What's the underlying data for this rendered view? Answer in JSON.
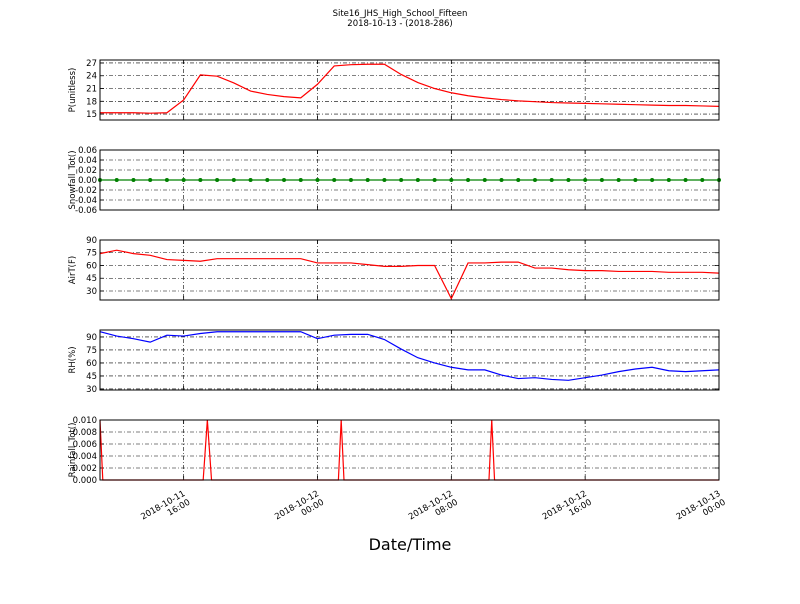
{
  "chart_data": [
    {
      "type": "line",
      "title": "Site16_JHS_High_School_Fifteen",
      "subtitle": "2018-10-13 - (2018-286)",
      "ylabel": "P(unitless)",
      "xlim": [
        "2018-10-11 11:00",
        "2018-10-13 00:00"
      ],
      "x": [
        "2018-10-11 11:00",
        "2018-10-11 12:00",
        "2018-10-11 13:00",
        "2018-10-11 14:00",
        "2018-10-11 15:00",
        "2018-10-11 16:00",
        "2018-10-11 17:00",
        "2018-10-11 18:00",
        "2018-10-11 19:00",
        "2018-10-11 20:00",
        "2018-10-11 21:00",
        "2018-10-11 22:00",
        "2018-10-11 23:00",
        "2018-10-12 00:00",
        "2018-10-12 01:00",
        "2018-10-12 02:00",
        "2018-10-12 03:00",
        "2018-10-12 04:00",
        "2018-10-12 05:00",
        "2018-10-12 06:00",
        "2018-10-12 07:00",
        "2018-10-12 08:00",
        "2018-10-12 09:00",
        "2018-10-12 10:00",
        "2018-10-12 11:00",
        "2018-10-12 12:00",
        "2018-10-12 13:00",
        "2018-10-12 14:00",
        "2018-10-12 15:00",
        "2018-10-12 16:00",
        "2018-10-12 17:00",
        "2018-10-12 18:00",
        "2018-10-12 19:00",
        "2018-10-12 20:00",
        "2018-10-12 21:00",
        "2018-10-12 22:00",
        "2018-10-12 23:00",
        "2018-10-13 00:00"
      ],
      "series": [
        {
          "color": "#ff0000",
          "values": [
            15.3,
            15.3,
            15.3,
            15.2,
            15.3,
            18.3,
            24.2,
            23.9,
            22.3,
            20.4,
            19.6,
            19.1,
            18.8,
            22.0,
            26.3,
            26.6,
            26.7,
            26.7,
            24.3,
            22.4,
            21.0,
            20.0,
            19.3,
            18.8,
            18.4,
            18.1,
            17.9,
            17.7,
            17.6,
            17.5,
            17.4,
            17.3,
            17.2,
            17.1,
            17.0,
            17.0,
            16.9,
            16.8
          ]
        }
      ],
      "ylim": [
        13.6,
        27.7
      ],
      "yticks": [
        15,
        18,
        21,
        24,
        27
      ],
      "grid": true
    },
    {
      "type": "line",
      "ylabel": "Snowfall_Tot()",
      "markers": true,
      "xlim": [
        "2018-10-11 11:00",
        "2018-10-13 00:00"
      ],
      "x": [
        "2018-10-11 11:00",
        "2018-10-11 12:00",
        "2018-10-11 13:00",
        "2018-10-11 14:00",
        "2018-10-11 15:00",
        "2018-10-11 16:00",
        "2018-10-11 17:00",
        "2018-10-11 18:00",
        "2018-10-11 19:00",
        "2018-10-11 20:00",
        "2018-10-11 21:00",
        "2018-10-11 22:00",
        "2018-10-11 23:00",
        "2018-10-12 00:00",
        "2018-10-12 01:00",
        "2018-10-12 02:00",
        "2018-10-12 03:00",
        "2018-10-12 04:00",
        "2018-10-12 05:00",
        "2018-10-12 06:00",
        "2018-10-12 07:00",
        "2018-10-12 08:00",
        "2018-10-12 09:00",
        "2018-10-12 10:00",
        "2018-10-12 11:00",
        "2018-10-12 12:00",
        "2018-10-12 13:00",
        "2018-10-12 14:00",
        "2018-10-12 15:00",
        "2018-10-12 16:00",
        "2018-10-12 17:00",
        "2018-10-12 18:00",
        "2018-10-12 19:00",
        "2018-10-12 20:00",
        "2018-10-12 21:00",
        "2018-10-12 22:00",
        "2018-10-12 23:00",
        "2018-10-13 00:00"
      ],
      "series": [
        {
          "color": "#008000",
          "values": [
            0,
            0,
            0,
            0,
            0,
            0,
            0,
            0,
            0,
            0,
            0,
            0,
            0,
            0,
            0,
            0,
            0,
            0,
            0,
            0,
            0,
            0,
            0,
            0,
            0,
            0,
            0,
            0,
            0,
            0,
            0,
            0,
            0,
            0,
            0,
            0,
            0,
            0
          ]
        }
      ],
      "ylim": [
        -0.06,
        0.06
      ],
      "yticks": [
        -0.06,
        -0.04,
        -0.02,
        {
          "value": 0,
          "label": "0.00"
        },
        0.02,
        0.04,
        0.06
      ],
      "grid": true
    },
    {
      "type": "line",
      "ylabel": "AirT(F)",
      "xlim": [
        "2018-10-11 11:00",
        "2018-10-13 00:00"
      ],
      "x": [
        "2018-10-11 11:00",
        "2018-10-11 12:00",
        "2018-10-11 13:00",
        "2018-10-11 14:00",
        "2018-10-11 15:00",
        "2018-10-11 16:00",
        "2018-10-11 17:00",
        "2018-10-11 18:00",
        "2018-10-11 19:00",
        "2018-10-11 20:00",
        "2018-10-11 21:00",
        "2018-10-11 22:00",
        "2018-10-11 23:00",
        "2018-10-12 00:00",
        "2018-10-12 01:00",
        "2018-10-12 02:00",
        "2018-10-12 03:00",
        "2018-10-12 04:00",
        "2018-10-12 05:00",
        "2018-10-12 06:00",
        "2018-10-12 07:00",
        "2018-10-12 08:00",
        "2018-10-12 09:00",
        "2018-10-12 10:00",
        "2018-10-12 11:00",
        "2018-10-12 12:00",
        "2018-10-12 13:00",
        "2018-10-12 14:00",
        "2018-10-12 15:00",
        "2018-10-12 16:00",
        "2018-10-12 17:00",
        "2018-10-12 18:00",
        "2018-10-12 19:00",
        "2018-10-12 20:00",
        "2018-10-12 21:00",
        "2018-10-12 22:00",
        "2018-10-12 23:00",
        "2018-10-13 00:00"
      ],
      "series": [
        {
          "color": "#ff0000",
          "values": [
            74,
            78,
            74,
            72,
            67,
            66,
            65,
            68,
            68,
            68,
            68,
            68,
            68,
            63,
            63,
            63,
            61,
            59,
            59,
            60,
            60,
            21,
            63,
            63,
            64,
            64,
            57,
            57,
            55,
            54,
            54,
            53,
            53,
            53,
            52,
            52,
            52,
            51
          ]
        }
      ],
      "ylim": [
        19.4,
        90
      ],
      "yticks": [
        30,
        45,
        60,
        75,
        90
      ],
      "grid": true
    },
    {
      "type": "line",
      "ylabel": "RH(%)",
      "xlim": [
        "2018-10-11 11:00",
        "2018-10-13 00:00"
      ],
      "x": [
        "2018-10-11 11:00",
        "2018-10-11 12:00",
        "2018-10-11 13:00",
        "2018-10-11 14:00",
        "2018-10-11 15:00",
        "2018-10-11 16:00",
        "2018-10-11 17:00",
        "2018-10-11 18:00",
        "2018-10-11 19:00",
        "2018-10-11 20:00",
        "2018-10-11 21:00",
        "2018-10-11 22:00",
        "2018-10-11 23:00",
        "2018-10-12 00:00",
        "2018-10-12 01:00",
        "2018-10-12 02:00",
        "2018-10-12 03:00",
        "2018-10-12 04:00",
        "2018-10-12 05:00",
        "2018-10-12 06:00",
        "2018-10-12 07:00",
        "2018-10-12 08:00",
        "2018-10-12 09:00",
        "2018-10-12 10:00",
        "2018-10-12 11:00",
        "2018-10-12 12:00",
        "2018-10-12 13:00",
        "2018-10-12 14:00",
        "2018-10-12 15:00",
        "2018-10-12 16:00",
        "2018-10-12 17:00",
        "2018-10-12 18:00",
        "2018-10-12 19:00",
        "2018-10-12 20:00",
        "2018-10-12 21:00",
        "2018-10-12 22:00",
        "2018-10-12 23:00",
        "2018-10-13 00:00"
      ],
      "series": [
        {
          "color": "#0000ff",
          "values": [
            96,
            91,
            88,
            84,
            92,
            91,
            94,
            96,
            96,
            96,
            96,
            96,
            96,
            88,
            92,
            93,
            93,
            87,
            76,
            66,
            60,
            55,
            52,
            52,
            46,
            42,
            43,
            41,
            40,
            43,
            46,
            50,
            53,
            55,
            51,
            50,
            51,
            52
          ]
        }
      ],
      "ylim": [
        28.8,
        98
      ],
      "yticks": [
        30,
        45,
        60,
        75,
        90
      ],
      "grid": true
    },
    {
      "type": "line",
      "ylabel": "Rainfall_Tot()",
      "xlabel": "Date/Time",
      "xlim": [
        "2018-10-11 11:00",
        "2018-10-13 00:00"
      ],
      "x": [
        "2018-10-11 11:00",
        "2018-10-11 11:10",
        "2018-10-11 17:10",
        "2018-10-11 17:25",
        "2018-10-11 17:40",
        "2018-10-12 01:15",
        "2018-10-12 01:25",
        "2018-10-12 01:35",
        "2018-10-12 10:15",
        "2018-10-12 10:25",
        "2018-10-12 10:35",
        "2018-10-13 00:00"
      ],
      "series": [
        {
          "color": "#ff0000",
          "values": [
            0.01,
            0,
            0,
            0.01,
            0,
            0,
            0.01,
            0,
            0,
            0.01,
            0,
            0
          ]
        }
      ],
      "ylim": [
        0,
        0.01
      ],
      "yticks": [
        {
          "value": 0,
          "label": "0.000"
        },
        {
          "value": 0.002,
          "label": "0.002"
        },
        {
          "value": 0.004,
          "label": "0.004"
        },
        {
          "value": 0.006,
          "label": "0.006"
        },
        {
          "value": 0.008,
          "label": "0.008"
        },
        {
          "value": 0.01,
          "label": "0.010"
        }
      ],
      "xticks": [
        "2018-10-11 16:00",
        "2018-10-12 00:00",
        "2018-10-12 08:00",
        "2018-10-12 16:00",
        "2018-10-13 00:00"
      ],
      "grid": true
    }
  ]
}
